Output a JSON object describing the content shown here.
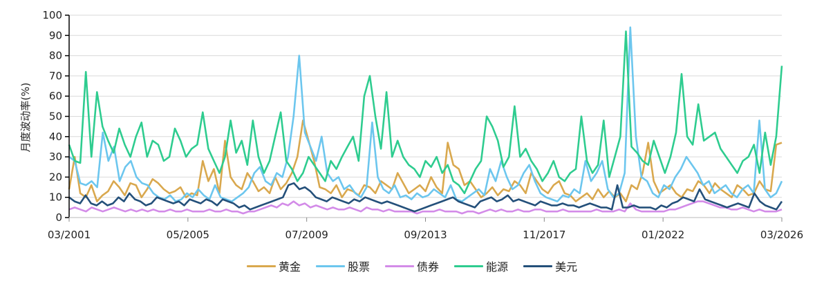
{
  "chart_data": {
    "type": "line",
    "title": "",
    "xlabel": "",
    "ylabel": "月度波动率(%)",
    "ylim": [
      0,
      100
    ],
    "yticks": [
      0,
      10,
      20,
      30,
      40,
      50,
      60,
      70,
      80,
      90,
      100
    ],
    "xtick_labels": [
      "03/2001",
      "05/2005",
      "07/2009",
      "09/2013",
      "11/2017",
      "01/2022",
      "03/2026"
    ],
    "grid": "horizontal",
    "legend_position": "bottom",
    "x_start": 2001.17,
    "x_end": 2026.17,
    "series": [
      {
        "name": "黄金",
        "color": "#D9A84E",
        "values": [
          14,
          30,
          12,
          10,
          16,
          8,
          11,
          13,
          18,
          15,
          11,
          17,
          16,
          10,
          14,
          19,
          17,
          14,
          12,
          13,
          15,
          10,
          12,
          11,
          28,
          18,
          24,
          12,
          38,
          20,
          16,
          14,
          22,
          18,
          13,
          15,
          12,
          20,
          14,
          17,
          22,
          30,
          48,
          38,
          28,
          15,
          14,
          12,
          16,
          10,
          14,
          13,
          11,
          16,
          15,
          12,
          18,
          16,
          14,
          22,
          17,
          12,
          14,
          16,
          13,
          20,
          15,
          12,
          37,
          26,
          24,
          16,
          18,
          14,
          10,
          12,
          15,
          11,
          14,
          13,
          18,
          16,
          12,
          22,
          18,
          14,
          12,
          16,
          18,
          12,
          11,
          8,
          10,
          12,
          9,
          14,
          10,
          13,
          10,
          12,
          8,
          16,
          14,
          22,
          37,
          18,
          12,
          14,
          16,
          12,
          10,
          14,
          13,
          18,
          16,
          12,
          17,
          14,
          12,
          10,
          16,
          14,
          11,
          12,
          18,
          14,
          13,
          36,
          37
        ]
      },
      {
        "name": "股票",
        "color": "#6CC6EE",
        "values": [
          30,
          28,
          17,
          16,
          18,
          15,
          42,
          28,
          35,
          18,
          25,
          28,
          20,
          17,
          16,
          12,
          10,
          9,
          11,
          8,
          9,
          12,
          10,
          14,
          11,
          9,
          16,
          10,
          9,
          8,
          10,
          12,
          15,
          22,
          25,
          18,
          16,
          22,
          20,
          30,
          50,
          80,
          42,
          35,
          28,
          40,
          22,
          18,
          20,
          14,
          16,
          12,
          10,
          15,
          47,
          20,
          14,
          12,
          16,
          10,
          11,
          9,
          12,
          10,
          11,
          14,
          12,
          10,
          16,
          9,
          8,
          10,
          12,
          14,
          11,
          24,
          18,
          28,
          20,
          14,
          16,
          22,
          26,
          18,
          12,
          10,
          9,
          8,
          11,
          10,
          14,
          12,
          28,
          18,
          22,
          28,
          14,
          10,
          12,
          22,
          94,
          40,
          20,
          18,
          12,
          10,
          16,
          14,
          20,
          24,
          30,
          26,
          22,
          16,
          18,
          12,
          14,
          16,
          12,
          10,
          14,
          16,
          12,
          48,
          14,
          10,
          12,
          18
        ]
      },
      {
        "name": "债券",
        "color": "#D38BE8",
        "values": [
          4,
          5,
          4,
          3,
          5,
          4,
          3,
          4,
          5,
          4,
          3,
          4,
          3,
          4,
          3,
          4,
          3,
          3,
          4,
          3,
          3,
          4,
          3,
          3,
          3,
          4,
          3,
          3,
          4,
          3,
          3,
          2,
          3,
          3,
          4,
          5,
          6,
          5,
          7,
          6,
          8,
          6,
          7,
          5,
          6,
          5,
          4,
          5,
          4,
          4,
          5,
          4,
          3,
          5,
          4,
          4,
          3,
          4,
          3,
          3,
          3,
          3,
          2,
          3,
          3,
          3,
          4,
          3,
          3,
          3,
          2,
          3,
          3,
          2,
          3,
          4,
          3,
          4,
          3,
          3,
          4,
          3,
          3,
          4,
          4,
          3,
          3,
          3,
          4,
          3,
          3,
          3,
          3,
          3,
          4,
          3,
          3,
          3,
          4,
          3,
          7,
          4,
          3,
          3,
          3,
          3,
          3,
          4,
          4,
          5,
          6,
          7,
          8,
          8,
          7,
          6,
          5,
          5,
          4,
          4,
          5,
          4,
          3,
          4,
          3,
          3,
          3,
          4
        ]
      },
      {
        "name": "能源",
        "color": "#2ECC8F",
        "values": [
          36,
          28,
          27,
          72,
          30,
          62,
          45,
          38,
          32,
          44,
          36,
          30,
          40,
          47,
          30,
          38,
          36,
          28,
          30,
          44,
          38,
          30,
          34,
          36,
          52,
          34,
          28,
          22,
          30,
          48,
          32,
          38,
          26,
          48,
          30,
          22,
          28,
          40,
          52,
          28,
          24,
          18,
          22,
          30,
          26,
          22,
          18,
          28,
          24,
          30,
          35,
          40,
          28,
          60,
          70,
          50,
          34,
          62,
          30,
          38,
          30,
          26,
          24,
          20,
          28,
          25,
          30,
          22,
          26,
          18,
          16,
          12,
          18,
          24,
          28,
          50,
          45,
          38,
          25,
          30,
          55,
          30,
          34,
          28,
          24,
          18,
          22,
          28,
          20,
          18,
          22,
          24,
          50,
          28,
          22,
          26,
          48,
          20,
          30,
          40,
          92,
          35,
          32,
          28,
          26,
          38,
          30,
          22,
          30,
          42,
          71,
          40,
          36,
          56,
          38,
          40,
          42,
          34,
          30,
          26,
          22,
          28,
          30,
          36,
          22,
          42,
          26,
          40,
          75
        ]
      },
      {
        "name": "美元",
        "color": "#24507A",
        "values": [
          10,
          8,
          7,
          11,
          7,
          6,
          8,
          6,
          7,
          10,
          8,
          12,
          9,
          8,
          6,
          7,
          10,
          9,
          8,
          7,
          8,
          6,
          9,
          8,
          7,
          9,
          8,
          6,
          9,
          8,
          7,
          5,
          6,
          4,
          5,
          6,
          7,
          8,
          9,
          10,
          16,
          17,
          14,
          15,
          13,
          10,
          9,
          8,
          10,
          9,
          8,
          7,
          9,
          8,
          10,
          9,
          8,
          7,
          8,
          7,
          6,
          5,
          4,
          3,
          4,
          5,
          6,
          7,
          8,
          9,
          10,
          8,
          7,
          6,
          5,
          8,
          9,
          10,
          8,
          9,
          11,
          8,
          9,
          8,
          7,
          6,
          8,
          7,
          6,
          6,
          7,
          6,
          6,
          5,
          6,
          7,
          6,
          5,
          5,
          4,
          16,
          5,
          5,
          6,
          5,
          5,
          5,
          4,
          6,
          5,
          7,
          8,
          10,
          9,
          8,
          14,
          9,
          8,
          7,
          6,
          5,
          6,
          7,
          6,
          5,
          12,
          8,
          6,
          5,
          4,
          8
        ]
      }
    ]
  },
  "legend": [
    {
      "label": "黄金",
      "color": "#D9A84E"
    },
    {
      "label": "股票",
      "color": "#6CC6EE"
    },
    {
      "label": "债券",
      "color": "#D38BE8"
    },
    {
      "label": "能源",
      "color": "#2ECC8F"
    },
    {
      "label": "美元",
      "color": "#24507A"
    }
  ]
}
